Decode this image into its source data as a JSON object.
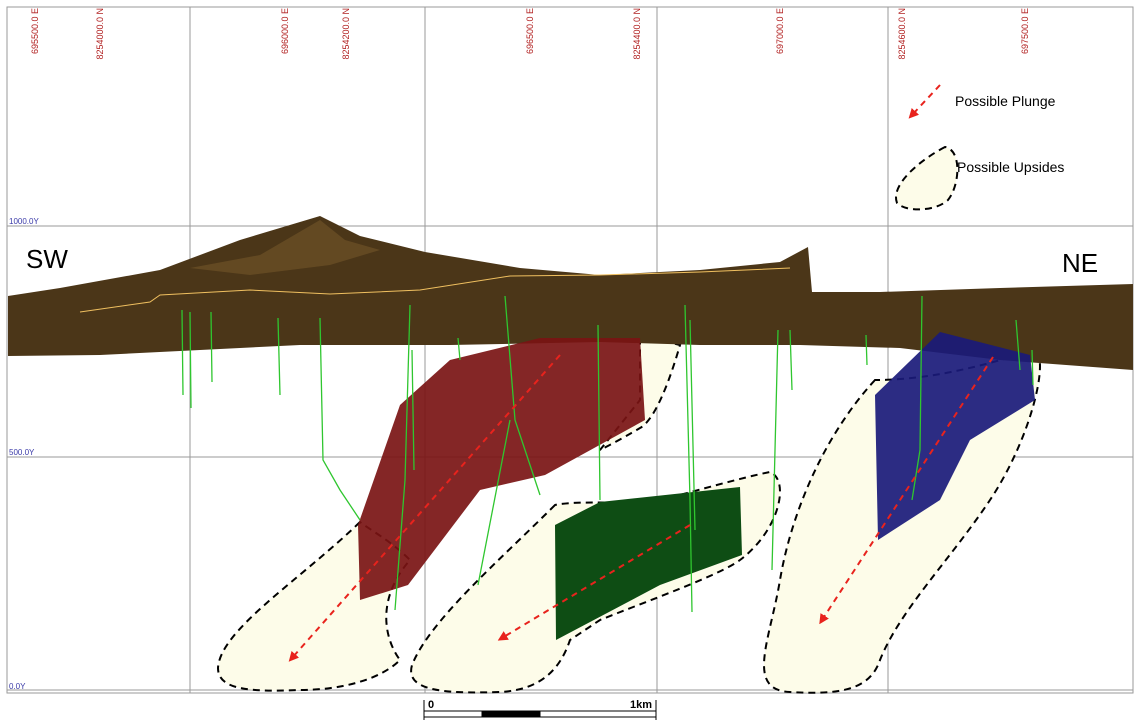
{
  "grid": {
    "coordinates": [
      "695500.0 E",
      "8254000.0 N",
      "696000.0 E",
      "8254200.0 N",
      "696500.0 E",
      "8254400.0 N",
      "697000.0 E",
      "8254600.0 N",
      "697500.0 E"
    ],
    "elevations": [
      "1000.0Y",
      "500.0Y",
      "0.0Y"
    ]
  },
  "section": {
    "left": "SW",
    "right": "NE"
  },
  "legend": [
    "Possible Plunge",
    "Possible Upsides"
  ],
  "scale_bar": {
    "start": "0",
    "end": "1km"
  }
}
